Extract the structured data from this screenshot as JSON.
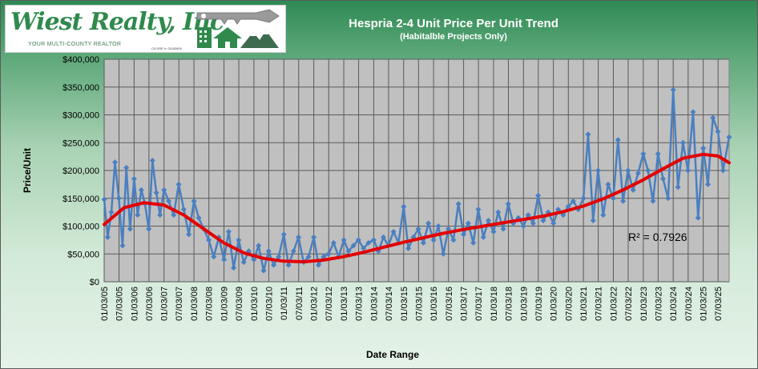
{
  "logo": {
    "brand": "Wiest Realty, Inc",
    "tagline": "YOUR MULTI-COUNTY REALTOR",
    "dre": "CA DRE #: 01183600",
    "icon": "house-key-mountains-logo"
  },
  "colors": {
    "data_series": "#4a7fc1",
    "trend": "#e30000",
    "plot_bg": "#c0c0c0",
    "grid": "#5a5a5a",
    "brand": "#2f8a4c"
  },
  "chart_data": {
    "type": "line",
    "title": "Hespria 2-4 Unit Price Per Unit Trend",
    "subtitle": "(Habitalble  Projects Only)",
    "xlabel": "Date Range",
    "ylabel": "Price/Unit",
    "ylim": [
      0,
      400000
    ],
    "yticks": [
      0,
      50000,
      100000,
      150000,
      200000,
      250000,
      300000,
      350000,
      400000
    ],
    "ytick_labels": [
      "$0",
      "$50,000",
      "$100,000",
      "$150,000",
      "$200,000",
      "$250,000",
      "$300,000",
      "$350,000",
      "$400,000"
    ],
    "xlim": [
      "2005-01-03",
      "2025-11-15"
    ],
    "xtick_labels": [
      "01/03/05",
      "07/03/05",
      "01/03/06",
      "07/03/06",
      "01/03/07",
      "07/03/07",
      "01/03/08",
      "07/03/08",
      "01/03/09",
      "07/03/09",
      "01/03/10",
      "07/03/10",
      "01/03/11",
      "07/03/11",
      "01/03/12",
      "07/03/12",
      "01/03/13",
      "07/03/13",
      "01/03/14",
      "07/03/14",
      "01/03/15",
      "07/03/15",
      "01/03/16",
      "07/03/16",
      "01/03/17",
      "07/03/17",
      "01/03/18",
      "07/03/18",
      "01/03/19",
      "07/03/19",
      "01/03/20",
      "07/03/20",
      "01/03/21",
      "07/03/21",
      "01/03/22",
      "07/03/22",
      "01/03/23",
      "07/03/23",
      "01/03/24",
      "07/03/24",
      "01/03/25",
      "07/03/25"
    ],
    "grid": true,
    "legend": "none",
    "annotation": "R² = 0.7926",
    "series": [
      {
        "role": "data",
        "x": [
          "2005-01-03",
          "2005-02-15",
          "2005-04-01",
          "2005-05-15",
          "2005-07-01",
          "2005-08-15",
          "2005-10-01",
          "2005-11-15",
          "2006-01-03",
          "2006-02-15",
          "2006-04-01",
          "2006-05-15",
          "2006-07-01",
          "2006-08-15",
          "2006-10-01",
          "2006-11-15",
          "2007-01-03",
          "2007-03-01",
          "2007-05-01",
          "2007-07-01",
          "2007-09-01",
          "2007-11-01",
          "2008-01-03",
          "2008-03-01",
          "2008-05-01",
          "2008-07-01",
          "2008-09-01",
          "2008-11-01",
          "2009-01-03",
          "2009-03-01",
          "2009-05-01",
          "2009-07-01",
          "2009-09-01",
          "2009-11-01",
          "2010-01-03",
          "2010-03-01",
          "2010-05-01",
          "2010-07-01",
          "2010-09-01",
          "2010-11-01",
          "2011-01-03",
          "2011-03-01",
          "2011-05-01",
          "2011-07-01",
          "2011-09-01",
          "2011-11-01",
          "2012-01-03",
          "2012-03-01",
          "2012-05-01",
          "2012-07-01",
          "2012-09-01",
          "2012-11-01",
          "2013-01-03",
          "2013-03-01",
          "2013-05-01",
          "2013-07-01",
          "2013-09-01",
          "2013-11-01",
          "2014-01-03",
          "2014-03-01",
          "2014-05-01",
          "2014-07-01",
          "2014-09-01",
          "2014-11-01",
          "2015-01-03",
          "2015-03-01",
          "2015-05-01",
          "2015-07-01",
          "2015-09-01",
          "2015-11-01",
          "2016-01-03",
          "2016-03-01",
          "2016-05-01",
          "2016-07-01",
          "2016-09-01",
          "2016-11-01",
          "2017-01-03",
          "2017-03-01",
          "2017-05-01",
          "2017-07-01",
          "2017-09-01",
          "2017-11-01",
          "2018-01-03",
          "2018-03-01",
          "2018-05-01",
          "2018-07-01",
          "2018-09-01",
          "2018-11-01",
          "2019-01-03",
          "2019-03-01",
          "2019-05-01",
          "2019-07-01",
          "2019-09-01",
          "2019-11-01",
          "2020-01-03",
          "2020-03-01",
          "2020-05-01",
          "2020-07-01",
          "2020-09-01",
          "2020-11-01",
          "2021-01-03",
          "2021-03-01",
          "2021-05-01",
          "2021-07-01",
          "2021-09-01",
          "2021-11-01",
          "2022-01-03",
          "2022-03-01",
          "2022-05-01",
          "2022-07-01",
          "2022-09-01",
          "2022-11-01",
          "2023-01-03",
          "2023-03-01",
          "2023-05-01",
          "2023-07-01",
          "2023-09-01",
          "2023-11-01",
          "2024-01-03",
          "2024-03-01",
          "2024-05-01",
          "2024-07-01",
          "2024-09-01",
          "2024-11-01",
          "2025-01-03",
          "2025-03-01",
          "2025-05-01",
          "2025-07-01",
          "2025-09-01",
          "2025-11-15"
        ],
        "values": [
          148000,
          80000,
          125000,
          215000,
          150000,
          65000,
          205000,
          95000,
          185000,
          120000,
          165000,
          140000,
          95000,
          218000,
          160000,
          120000,
          165000,
          145000,
          120000,
          175000,
          130000,
          85000,
          145000,
          115000,
          95000,
          75000,
          45000,
          80000,
          40000,
          90000,
          25000,
          75000,
          35000,
          55000,
          40000,
          65000,
          20000,
          55000,
          30000,
          45000,
          85000,
          30000,
          55000,
          80000,
          35000,
          45000,
          80000,
          30000,
          45000,
          50000,
          70000,
          45000,
          75000,
          55000,
          65000,
          75000,
          60000,
          70000,
          75000,
          55000,
          80000,
          65000,
          90000,
          70000,
          135000,
          60000,
          80000,
          95000,
          70000,
          105000,
          75000,
          100000,
          50000,
          95000,
          75000,
          140000,
          85000,
          105000,
          70000,
          130000,
          80000,
          110000,
          90000,
          125000,
          95000,
          140000,
          105000,
          115000,
          100000,
          120000,
          105000,
          155000,
          110000,
          125000,
          105000,
          130000,
          120000,
          135000,
          145000,
          130000,
          150000,
          265000,
          110000,
          200000,
          120000,
          175000,
          150000,
          255000,
          145000,
          200000,
          165000,
          195000,
          230000,
          200000,
          145000,
          230000,
          185000,
          150000,
          345000,
          170000,
          250000,
          200000,
          305000,
          115000,
          240000,
          175000,
          295000,
          270000,
          200000,
          260000
        ]
      },
      {
        "role": "trend",
        "type": "polynomial",
        "x": [
          "2005-01-03",
          "2005-09-01",
          "2006-05-01",
          "2007-01-01",
          "2007-09-01",
          "2008-05-01",
          "2009-01-01",
          "2009-09-01",
          "2010-05-01",
          "2011-01-01",
          "2011-09-01",
          "2012-05-01",
          "2013-01-01",
          "2013-09-01",
          "2014-05-01",
          "2015-01-01",
          "2015-09-01",
          "2016-05-01",
          "2017-01-01",
          "2017-09-01",
          "2018-05-01",
          "2019-01-01",
          "2019-09-01",
          "2020-05-01",
          "2021-01-01",
          "2021-09-01",
          "2022-05-01",
          "2023-01-01",
          "2023-09-01",
          "2024-05-01",
          "2025-01-01",
          "2025-07-01",
          "2025-11-15"
        ],
        "values": [
          103000,
          133000,
          142000,
          138000,
          120000,
          95000,
          70000,
          52000,
          42000,
          37000,
          36000,
          39000,
          45000,
          53000,
          62000,
          71000,
          79000,
          87000,
          94000,
          100000,
          106000,
          112000,
          118000,
          126000,
          136000,
          149000,
          165000,
          183000,
          203000,
          222000,
          229000,
          226000,
          214000
        ]
      }
    ]
  }
}
